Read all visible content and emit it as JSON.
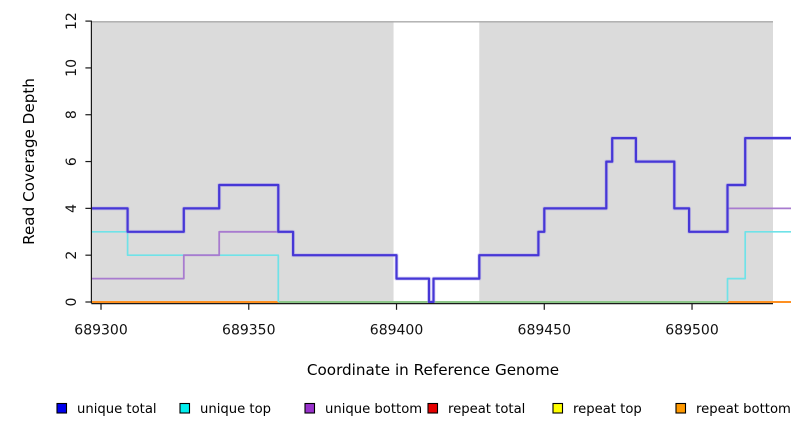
{
  "page": {
    "background": "#FFFFFF"
  },
  "chart_data": {
    "type": "step-line",
    "title": "",
    "x_axis": {
      "label": "Coordinate in Reference Genome",
      "range": [
        689296.95,
        689527.4
      ],
      "ticks": [
        689300,
        689350,
        689400,
        689450,
        689500
      ]
    },
    "y_axis": {
      "label": "Read Coverage Depth",
      "range": [
        0,
        12
      ],
      "ticks": [
        0,
        2,
        4,
        6,
        8,
        10,
        12
      ]
    },
    "plot_background": "#DBDBDB",
    "highlight_band": {
      "x_start": 689399,
      "x_end": 689428,
      "color": "#FFFFFF"
    },
    "top_rule_color": "#ABABAB",
    "axis_color": "#1A1A1A",
    "tick_label_color": "#111111",
    "line_end_x": 689533.5,
    "zero_blend_segment": {
      "x_start": 689360,
      "x_end": 689512,
      "color": "#7CCD96"
    },
    "series": [
      {
        "name": "repeat total",
        "line_color": "#E60000",
        "width": 1.5,
        "paths": [
          [
            [
              689296.95,
              0
            ],
            [
              689533.5,
              0
            ]
          ]
        ]
      },
      {
        "name": "repeat top",
        "line_color": "#FFE135",
        "width": 1.5,
        "paths": [
          [
            [
              689296.95,
              0
            ],
            [
              689533.5,
              0
            ]
          ]
        ]
      },
      {
        "name": "repeat bottom",
        "line_color": "#FF8C1A",
        "width": 1.8,
        "paths": [
          [
            [
              689296.95,
              0
            ],
            [
              689533.5,
              0
            ]
          ]
        ]
      },
      {
        "name": "unique top",
        "line_color": "#6FE2E8",
        "width": 1.7,
        "paths": [
          [
            [
              689296.95,
              3
            ],
            [
              689309,
              2
            ],
            [
              689360,
              0
            ]
          ],
          [
            [
              689512,
              0
            ],
            [
              689512,
              1
            ],
            [
              689518,
              3
            ],
            [
              689533.5,
              3
            ]
          ]
        ]
      },
      {
        "name": "unique bottom",
        "line_color": "#A87BCF",
        "width": 1.8,
        "paths": [
          [
            [
              689296.95,
              1
            ],
            [
              689328,
              2
            ],
            [
              689340,
              3
            ],
            [
              689365,
              2
            ],
            [
              689400,
              1
            ],
            [
              689411,
              0
            ],
            [
              689412.5,
              1
            ],
            [
              689428,
              2
            ],
            [
              689448,
              3
            ],
            [
              689450,
              4
            ],
            [
              689471,
              6
            ],
            [
              689473,
              7
            ],
            [
              689481,
              6
            ],
            [
              689494,
              4
            ],
            [
              689499,
              3
            ],
            [
              689512,
              4
            ],
            [
              689533.5,
              4
            ]
          ]
        ]
      },
      {
        "name": "unique total",
        "line_color": "#4637D6",
        "halo_color": "#A79BEA",
        "width": 2.2,
        "paths": [
          [
            [
              689296.95,
              4
            ],
            [
              689309,
              3
            ],
            [
              689328,
              4
            ],
            [
              689340,
              5
            ],
            [
              689360,
              3
            ],
            [
              689365,
              2
            ],
            [
              689400,
              1
            ],
            [
              689411,
              0
            ],
            [
              689412.5,
              1
            ],
            [
              689428,
              2
            ],
            [
              689448,
              3
            ],
            [
              689450,
              4
            ],
            [
              689471,
              6
            ],
            [
              689473,
              7
            ],
            [
              689481,
              6
            ],
            [
              689494,
              4
            ],
            [
              689499,
              3
            ],
            [
              689512,
              5
            ],
            [
              689518,
              7
            ],
            [
              689533.5,
              7
            ]
          ]
        ]
      }
    ],
    "legend": {
      "items": [
        {
          "label": "unique total",
          "swatch": "#0000EE"
        },
        {
          "label": "unique top",
          "swatch": "#00EEEE"
        },
        {
          "label": "unique bottom",
          "swatch": "#9932CC"
        },
        {
          "label": "repeat total",
          "swatch": "#E60000"
        },
        {
          "label": "repeat top",
          "swatch": "#FFFF00"
        },
        {
          "label": "repeat bottom",
          "swatch": "#FF9900"
        }
      ]
    }
  }
}
